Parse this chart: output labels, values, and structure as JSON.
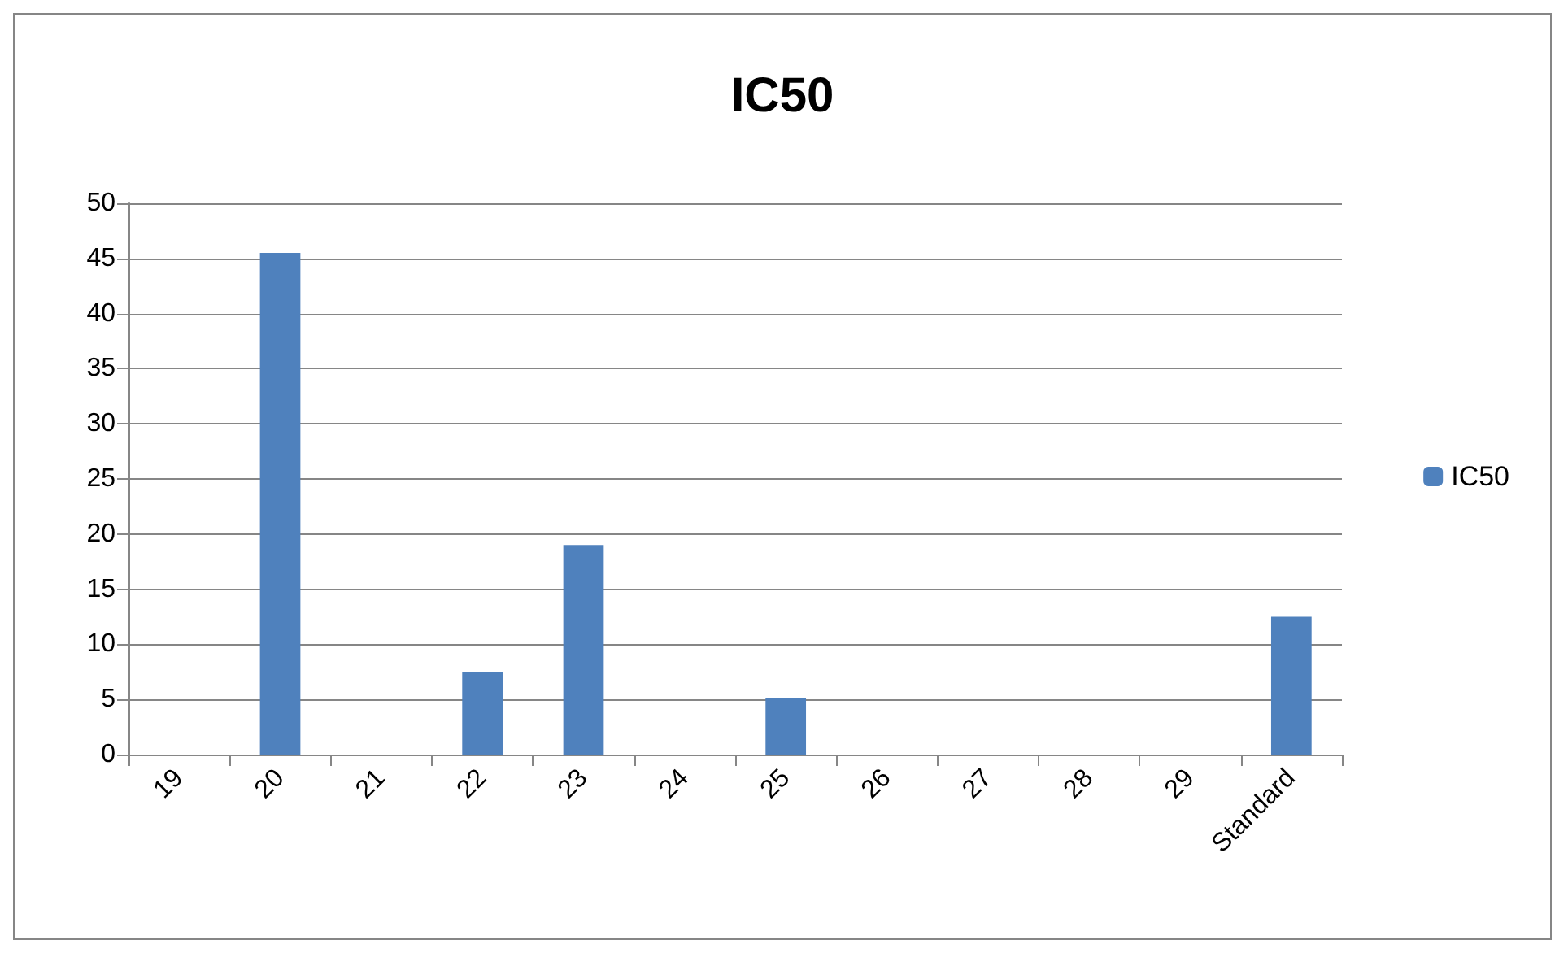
{
  "chart_data": {
    "type": "bar",
    "title": "IC50",
    "categories": [
      "19",
      "20",
      "21",
      "22",
      "23",
      "24",
      "25",
      "26",
      "27",
      "28",
      "29",
      "Standard"
    ],
    "series": [
      {
        "name": "IC50",
        "color": "#4f81bd",
        "values": [
          null,
          45.5,
          null,
          7.5,
          19,
          null,
          5.1,
          null,
          null,
          null,
          null,
          12.5
        ]
      }
    ],
    "ylim": [
      0,
      50
    ],
    "yticks": [
      0,
      5,
      10,
      15,
      20,
      25,
      30,
      35,
      40,
      45,
      50
    ],
    "grid": "y",
    "legend": "right"
  }
}
